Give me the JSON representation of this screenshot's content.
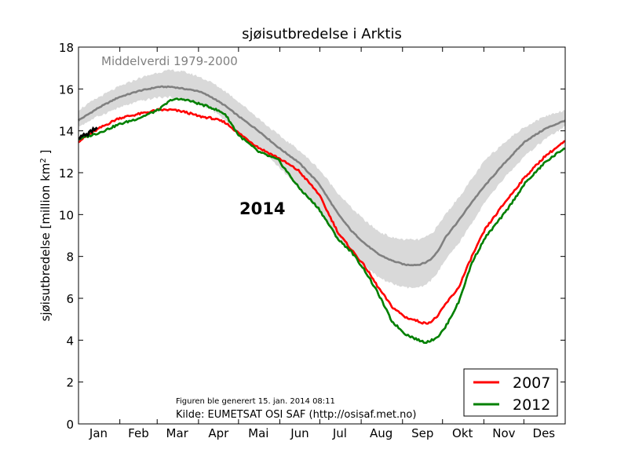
{
  "chart_data": {
    "type": "line",
    "title": "sjøisutbredelse i Arktis",
    "ylabel": "sjøisutbredelse [million km",
    "ylabel_sup": "2",
    "ylabel_end": " ]",
    "ylim": [
      0,
      18
    ],
    "yticks": [
      0,
      2,
      4,
      6,
      8,
      10,
      12,
      14,
      16,
      18
    ],
    "xlim": [
      0,
      365
    ],
    "months": [
      {
        "label": "Jan",
        "day": 15
      },
      {
        "label": "Feb",
        "day": 45
      },
      {
        "label": "Mar",
        "day": 74
      },
      {
        "label": "Apr",
        "day": 105
      },
      {
        "label": "Mai",
        "day": 135
      },
      {
        "label": "Jun",
        "day": 166
      },
      {
        "label": "Jul",
        "day": 196
      },
      {
        "label": "Aug",
        "day": 227
      },
      {
        "label": "Sep",
        "day": 258
      },
      {
        "label": "Okt",
        "day": 288
      },
      {
        "label": "Nov",
        "day": 319
      },
      {
        "label": "Des",
        "day": 349
      }
    ],
    "grid": false,
    "legend_position": "bottom-right",
    "annotations": {
      "mean_label": "Middelverdi 1979-2000",
      "year_label": "2014",
      "generated": "Figuren ble generert 15. jan. 2014 08:11",
      "source": "Kilde: EUMETSAT OSI SAF (http://osisaf.met.no)"
    },
    "colors": {
      "y2007": "#ff0000",
      "y2012": "#008000",
      "y2014": "#000000",
      "mean": "#808080",
      "band": "#d9d9d9",
      "mean_label": "#808080"
    },
    "x": [
      0,
      15,
      30,
      45,
      60,
      70,
      80,
      90,
      100,
      110,
      120,
      135,
      150,
      165,
      180,
      195,
      205,
      215,
      225,
      235,
      245,
      255,
      260,
      265,
      270,
      275,
      285,
      295,
      305,
      320,
      335,
      350,
      365
    ],
    "band": {
      "name": "",
      "lower": [
        14.2,
        14.7,
        15.1,
        15.4,
        15.6,
        15.6,
        15.5,
        15.3,
        15.0,
        14.5,
        13.9,
        13.2,
        12.3,
        11.3,
        10.2,
        8.9,
        8.1,
        7.5,
        7.0,
        6.7,
        6.5,
        6.5,
        6.6,
        6.9,
        7.3,
        7.8,
        8.6,
        9.6,
        10.6,
        11.8,
        12.8,
        13.6,
        14.2
      ],
      "upper": [
        15.0,
        15.6,
        16.1,
        16.5,
        16.8,
        16.9,
        16.8,
        16.6,
        16.3,
        15.9,
        15.4,
        14.6,
        13.8,
        13.1,
        12.2,
        11.0,
        10.3,
        9.7,
        9.2,
        8.9,
        8.8,
        8.8,
        8.9,
        9.1,
        9.5,
        10.0,
        10.8,
        11.7,
        12.6,
        13.5,
        14.2,
        14.7,
        15.0
      ]
    },
    "series": [
      {
        "name": "",
        "key": "mean",
        "values": [
          14.5,
          15.1,
          15.6,
          15.9,
          16.1,
          16.1,
          16.0,
          15.9,
          15.6,
          15.2,
          14.7,
          14.0,
          13.2,
          12.5,
          11.5,
          10.0,
          9.2,
          8.6,
          8.1,
          7.8,
          7.6,
          7.6,
          7.7,
          7.9,
          8.3,
          8.9,
          9.7,
          10.6,
          11.4,
          12.5,
          13.5,
          14.1,
          14.5
        ]
      },
      {
        "name": "2007",
        "key": "y2007",
        "values": [
          13.5,
          14.1,
          14.6,
          14.8,
          15.0,
          15.0,
          14.9,
          14.7,
          14.6,
          14.4,
          13.9,
          13.2,
          12.7,
          12.1,
          11.0,
          9.1,
          8.3,
          7.5,
          6.5,
          5.6,
          5.1,
          4.9,
          4.8,
          4.9,
          5.2,
          5.7,
          6.5,
          8.0,
          9.3,
          10.6,
          11.8,
          12.8,
          13.5
        ]
      },
      {
        "name": "2012",
        "key": "y2012",
        "values": [
          13.6,
          13.9,
          14.3,
          14.6,
          15.0,
          15.5,
          15.5,
          15.3,
          15.1,
          14.8,
          13.8,
          13.0,
          12.6,
          11.3,
          10.3,
          8.8,
          8.2,
          7.3,
          6.2,
          4.9,
          4.3,
          4.0,
          3.9,
          4.0,
          4.2,
          4.6,
          5.8,
          7.7,
          8.9,
          10.1,
          11.5,
          12.5,
          13.2
        ]
      }
    ],
    "series_2014": {
      "name": "",
      "x": [
        0,
        2,
        4,
        6,
        8,
        10,
        12,
        14
      ],
      "values": [
        13.7,
        13.7,
        13.8,
        13.8,
        13.9,
        14.0,
        14.1,
        14.1
      ]
    },
    "legend": [
      {
        "label": "2007",
        "key": "y2007"
      },
      {
        "label": "2012",
        "key": "y2012"
      }
    ]
  }
}
